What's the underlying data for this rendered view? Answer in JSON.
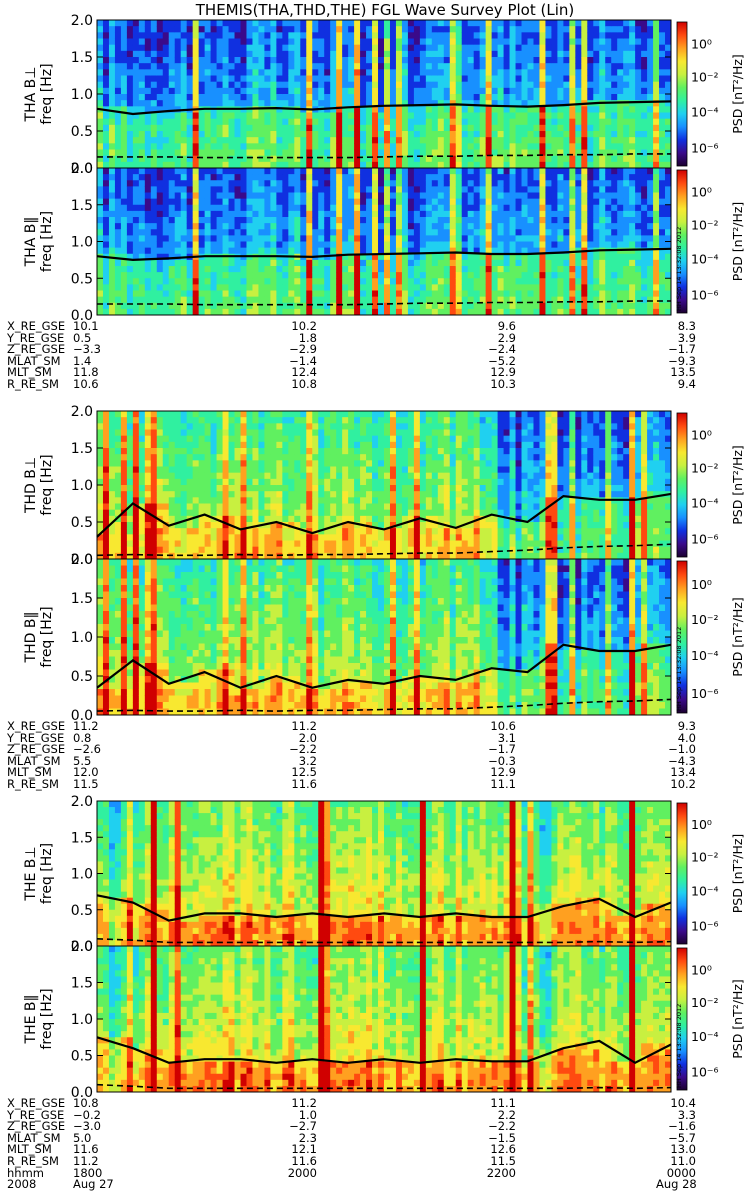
{
  "title": "THEMIS(THA,THD,THE) FGL Wave Survey Plot (Lin)",
  "colorbar": {
    "label": "PSD [nT²/Hz]",
    "ticks": [
      "10⁰",
      "10⁻²",
      "10⁻⁴",
      "10⁻⁶"
    ],
    "stamp": "HH Sep 14 13:32:08 2012",
    "colormap": [
      "#1b0030",
      "#3a0a8a",
      "#1030e0",
      "#1890ff",
      "#20d0f0",
      "#30f0a0",
      "#60f060",
      "#c8f040",
      "#f8e830",
      "#ffa020",
      "#ff4a10",
      "#d00000"
    ]
  },
  "chart_data": {
    "type": "heatmap",
    "ylabel": "freq [Hz]",
    "ylim": [
      0.0,
      2.0
    ],
    "yticks": [
      "0.0",
      "0.5",
      "1.0",
      "1.5",
      "2.0"
    ],
    "grid": false,
    "probes": [
      {
        "probe": "THA",
        "panels": [
          {
            "label": "THA B⊥",
            "solid_line": [
              0.8,
              0.73,
              0.77,
              0.8,
              0.8,
              0.81,
              0.79,
              0.82,
              0.84,
              0.85,
              0.86,
              0.84,
              0.83,
              0.85,
              0.88,
              0.89,
              0.9
            ],
            "dashed_line": [
              0.15,
              0.15,
              0.15,
              0.14,
              0.14,
              0.14,
              0.14,
              0.14,
              0.15,
              0.16,
              0.16,
              0.17,
              0.17,
              0.18,
              0.18,
              0.19,
              0.19
            ]
          },
          {
            "label": "THA B‖",
            "solid_line": [
              0.8,
              0.75,
              0.77,
              0.8,
              0.8,
              0.8,
              0.79,
              0.82,
              0.83,
              0.84,
              0.85,
              0.83,
              0.83,
              0.85,
              0.88,
              0.89,
              0.9
            ],
            "dashed_line": [
              0.15,
              0.15,
              0.15,
              0.14,
              0.14,
              0.14,
              0.14,
              0.14,
              0.15,
              0.16,
              0.16,
              0.17,
              0.17,
              0.18,
              0.18,
              0.19,
              0.19
            ]
          }
        ],
        "ephemeris": [
          {
            "label": "X_RE_GSE",
            "values": [
              "10.1",
              "10.2",
              "9.6",
              "8.3"
            ]
          },
          {
            "label": "Y_RE_GSE",
            "values": [
              "0.5",
              "1.8",
              "2.9",
              "3.9"
            ]
          },
          {
            "label": "Z_RE_GSE",
            "values": [
              "−3.3",
              "−2.9",
              "−2.4",
              "−1.7"
            ]
          },
          {
            "label": "MLAT_SM",
            "values": [
              "1.4",
              "−1.4",
              "−5.2",
              "−9.3"
            ]
          },
          {
            "label": "MLT_SM",
            "values": [
              "11.8",
              "12.4",
              "12.9",
              "13.5"
            ]
          },
          {
            "label": "R_RE_SM",
            "values": [
              "10.6",
              "10.8",
              "10.3",
              "9.4"
            ]
          }
        ]
      },
      {
        "probe": "THD",
        "panels": [
          {
            "label": "THD B⊥",
            "solid_line": [
              0.3,
              0.75,
              0.45,
              0.6,
              0.4,
              0.5,
              0.35,
              0.5,
              0.4,
              0.55,
              0.42,
              0.6,
              0.5,
              0.85,
              0.8,
              0.8,
              0.88
            ],
            "dashed_line": [
              0.05,
              0.06,
              0.05,
              0.05,
              0.06,
              0.05,
              0.06,
              0.06,
              0.07,
              0.08,
              0.08,
              0.1,
              0.12,
              0.15,
              0.17,
              0.18,
              0.2
            ]
          },
          {
            "label": "THD B‖",
            "solid_line": [
              0.35,
              0.7,
              0.4,
              0.55,
              0.35,
              0.5,
              0.35,
              0.45,
              0.4,
              0.5,
              0.45,
              0.6,
              0.55,
              0.9,
              0.82,
              0.82,
              0.9
            ],
            "dashed_line": [
              0.05,
              0.06,
              0.05,
              0.05,
              0.06,
              0.05,
              0.06,
              0.06,
              0.07,
              0.08,
              0.08,
              0.1,
              0.12,
              0.15,
              0.17,
              0.18,
              0.2
            ]
          }
        ],
        "ephemeris": [
          {
            "label": "X_RE_GSE",
            "values": [
              "11.2",
              "11.2",
              "10.6",
              "9.3"
            ]
          },
          {
            "label": "Y_RE_GSE",
            "values": [
              "0.8",
              "2.0",
              "3.1",
              "4.0"
            ]
          },
          {
            "label": "Z_RE_GSE",
            "values": [
              "−2.6",
              "−2.2",
              "−1.7",
              "−1.0"
            ]
          },
          {
            "label": "MLAT_SM",
            "values": [
              "5.5",
              "3.2",
              "−0.3",
              "−4.3"
            ]
          },
          {
            "label": "MLT_SM",
            "values": [
              "12.0",
              "12.5",
              "12.9",
              "13.4"
            ]
          },
          {
            "label": "R_RE_SM",
            "values": [
              "11.5",
              "11.6",
              "11.1",
              "10.2"
            ]
          }
        ]
      },
      {
        "probe": "THE",
        "panels": [
          {
            "label": "THE B⊥",
            "solid_line": [
              0.7,
              0.6,
              0.35,
              0.45,
              0.45,
              0.4,
              0.45,
              0.4,
              0.45,
              0.4,
              0.45,
              0.4,
              0.4,
              0.55,
              0.65,
              0.4,
              0.6
            ],
            "dashed_line": [
              0.1,
              0.08,
              0.05,
              0.05,
              0.05,
              0.05,
              0.05,
              0.05,
              0.05,
              0.05,
              0.05,
              0.05,
              0.05,
              0.05,
              0.06,
              0.05,
              0.06
            ]
          },
          {
            "label": "THE B‖",
            "solid_line": [
              0.75,
              0.6,
              0.4,
              0.45,
              0.45,
              0.4,
              0.45,
              0.4,
              0.45,
              0.4,
              0.45,
              0.42,
              0.42,
              0.6,
              0.7,
              0.4,
              0.65
            ],
            "dashed_line": [
              0.1,
              0.08,
              0.05,
              0.05,
              0.05,
              0.05,
              0.05,
              0.05,
              0.05,
              0.05,
              0.05,
              0.05,
              0.05,
              0.05,
              0.06,
              0.05,
              0.06
            ]
          }
        ],
        "ephemeris": [
          {
            "label": "X_RE_GSE",
            "values": [
              "10.8",
              "11.2",
              "11.1",
              "10.4"
            ]
          },
          {
            "label": "Y_RE_GSE",
            "values": [
              "−0.2",
              "1.0",
              "2.2",
              "3.3"
            ]
          },
          {
            "label": "Z_RE_GSE",
            "values": [
              "−3.0",
              "−2.7",
              "−2.2",
              "−1.6"
            ]
          },
          {
            "label": "MLAT_SM",
            "values": [
              "5.0",
              "2.3",
              "−1.5",
              "−5.7"
            ]
          },
          {
            "label": "MLT_SM",
            "values": [
              "11.6",
              "12.1",
              "12.6",
              "13.0"
            ]
          },
          {
            "label": "R_RE_SM",
            "values": [
              "11.2",
              "11.6",
              "11.5",
              "11.0"
            ]
          },
          {
            "label": "hhmm",
            "values": [
              "1800",
              "2000",
              "2200",
              "0000"
            ]
          },
          {
            "label": "2008",
            "values": [
              "Aug 27",
              "",
              "",
              "Aug 28"
            ]
          }
        ]
      }
    ]
  }
}
